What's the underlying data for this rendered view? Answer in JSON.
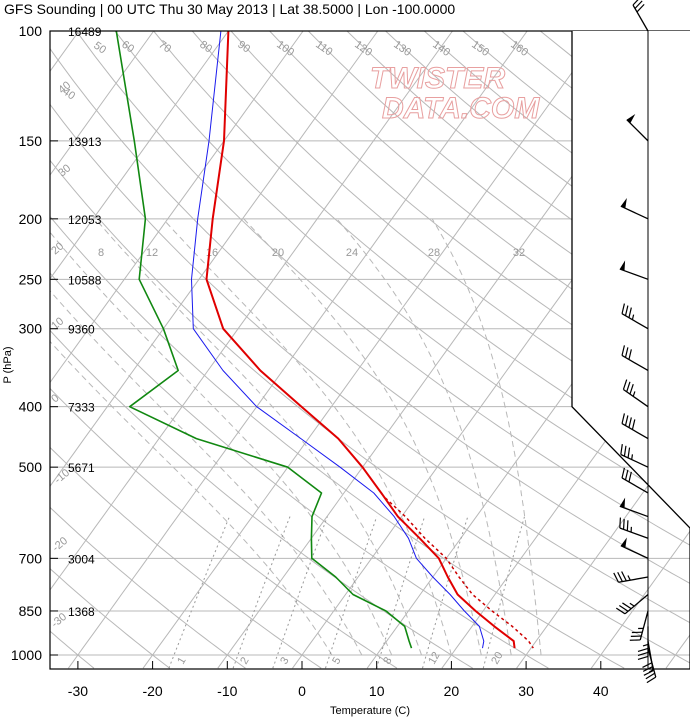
{
  "title": "GFS Sounding | 00 UTC Thu 30 May 2013 | Lat 38.5000 | Lon -100.0000",
  "watermark": [
    "TWISTER",
    "DATA.COM"
  ],
  "colors": {
    "temperature": "#e00000",
    "virtual_temperature": "#cc0000",
    "dewpoint": "#118811",
    "parcel": "#1a1aee",
    "background_lines": "#b8b8b8",
    "watermark": "#e8a0a0"
  },
  "background_labels": {
    "theta": [
      "40",
      "50",
      "60",
      "70",
      "80",
      "90",
      "100",
      "110",
      "120",
      "130",
      "140",
      "150",
      "160"
    ],
    "temp_diag": [
      "30",
      "20",
      "10",
      "0",
      "-10",
      "-20",
      "-30",
      "40",
      "30",
      "20",
      "10",
      "0",
      "-10",
      "-20",
      "-30"
    ],
    "theta_e": [
      "8",
      "12",
      "16",
      "20",
      "24",
      "28",
      "32"
    ],
    "mixing_ratio": [
      "1",
      "2",
      "3",
      "5",
      "8",
      "12",
      "20"
    ]
  },
  "chart_data": {
    "type": "line",
    "title": "GFS Sounding | 00 UTC Thu 30 May 2013 | Lat 38.5000 | Lon -100.0000",
    "xlabel": "Temperature (C)",
    "ylabel": "P (hPa)",
    "xlim": [
      -34,
      52
    ],
    "ylim": [
      1040,
      100
    ],
    "yscale": "log",
    "grid": true,
    "x_ticks": [
      -30,
      -20,
      -10,
      0,
      10,
      20,
      30,
      40
    ],
    "pressure_levels": [
      100,
      150,
      200,
      250,
      300,
      400,
      500,
      700,
      850,
      1000
    ],
    "heights": [
      {
        "p": 100,
        "z": "16489"
      },
      {
        "p": 150,
        "z": "13913"
      },
      {
        "p": 200,
        "z": "12053"
      },
      {
        "p": 250,
        "z": "10588"
      },
      {
        "p": 300,
        "z": "9360"
      },
      {
        "p": 400,
        "z": "7333"
      },
      {
        "p": 500,
        "z": "5671"
      },
      {
        "p": 700,
        "z": "3004"
      },
      {
        "p": 850,
        "z": "1368"
      }
    ],
    "series": [
      {
        "name": "",
        "points": [
          [
            100,
            -70
          ],
          [
            150,
            -60
          ],
          [
            200,
            -54
          ],
          [
            250,
            -49
          ],
          [
            300,
            -42
          ],
          [
            350,
            -33
          ],
          [
            400,
            -24
          ],
          [
            450,
            -16
          ],
          [
            500,
            -10
          ],
          [
            550,
            -5
          ],
          [
            600,
            -0.5
          ],
          [
            650,
            4.5
          ],
          [
            700,
            9
          ],
          [
            750,
            12
          ],
          [
            800,
            15
          ],
          [
            850,
            19
          ],
          [
            900,
            23
          ],
          [
            950,
            27
          ],
          [
            975,
            27.8
          ]
        ]
      },
      {
        "name": "",
        "points": [
          [
            560,
            -4
          ],
          [
            600,
            0.5
          ],
          [
            650,
            5.2
          ],
          [
            700,
            10
          ],
          [
            750,
            13.5
          ],
          [
            800,
            17
          ],
          [
            850,
            21.2
          ],
          [
            900,
            25.4
          ],
          [
            950,
            29
          ],
          [
            975,
            30.3
          ]
        ]
      },
      {
        "name": "",
        "points": [
          [
            100,
            -85
          ],
          [
            150,
            -72
          ],
          [
            200,
            -63
          ],
          [
            250,
            -58
          ],
          [
            300,
            -50
          ],
          [
            350,
            -44
          ],
          [
            400,
            -47
          ],
          [
            450,
            -35
          ],
          [
            500,
            -20
          ],
          [
            550,
            -13
          ],
          [
            600,
            -12
          ],
          [
            650,
            -10
          ],
          [
            700,
            -8
          ],
          [
            750,
            -3
          ],
          [
            800,
            1
          ],
          [
            850,
            7
          ],
          [
            900,
            11
          ],
          [
            950,
            13
          ],
          [
            975,
            14
          ]
        ]
      },
      {
        "name": "",
        "points": [
          [
            100,
            -71
          ],
          [
            150,
            -62
          ],
          [
            200,
            -56
          ],
          [
            250,
            -51
          ],
          [
            300,
            -46
          ],
          [
            350,
            -38
          ],
          [
            400,
            -30
          ],
          [
            450,
            -21
          ],
          [
            500,
            -13
          ],
          [
            550,
            -6
          ],
          [
            600,
            -1
          ],
          [
            650,
            3
          ],
          [
            700,
            6
          ],
          [
            750,
            10
          ],
          [
            800,
            14
          ],
          [
            850,
            17.5
          ],
          [
            900,
            21
          ],
          [
            950,
            23
          ],
          [
            975,
            23.5
          ]
        ]
      }
    ],
    "wind_barbs": [
      {
        "p": 100,
        "dir": 330,
        "speed_kt": 30
      },
      {
        "p": 150,
        "dir": 315,
        "speed_kt": 50
      },
      {
        "p": 200,
        "dir": 295,
        "speed_kt": 50
      },
      {
        "p": 250,
        "dir": 290,
        "speed_kt": 50
      },
      {
        "p": 300,
        "dir": 300,
        "speed_kt": 35
      },
      {
        "p": 350,
        "dir": 300,
        "speed_kt": 30
      },
      {
        "p": 400,
        "dir": 305,
        "speed_kt": 35
      },
      {
        "p": 450,
        "dir": 300,
        "speed_kt": 40
      },
      {
        "p": 500,
        "dir": 295,
        "speed_kt": 35
      },
      {
        "p": 550,
        "dir": 300,
        "speed_kt": 30
      },
      {
        "p": 600,
        "dir": 290,
        "speed_kt": 50
      },
      {
        "p": 650,
        "dir": 290,
        "speed_kt": 35
      },
      {
        "p": 700,
        "dir": 295,
        "speed_kt": 50
      },
      {
        "p": 750,
        "dir": 260,
        "speed_kt": 35
      },
      {
        "p": 800,
        "dir": 230,
        "speed_kt": 35
      },
      {
        "p": 850,
        "dir": 195,
        "speed_kt": 35
      },
      {
        "p": 900,
        "dir": 180,
        "speed_kt": 35
      },
      {
        "p": 950,
        "dir": 170,
        "speed_kt": 30
      },
      {
        "p": 975,
        "dir": 165,
        "speed_kt": 25
      }
    ]
  }
}
